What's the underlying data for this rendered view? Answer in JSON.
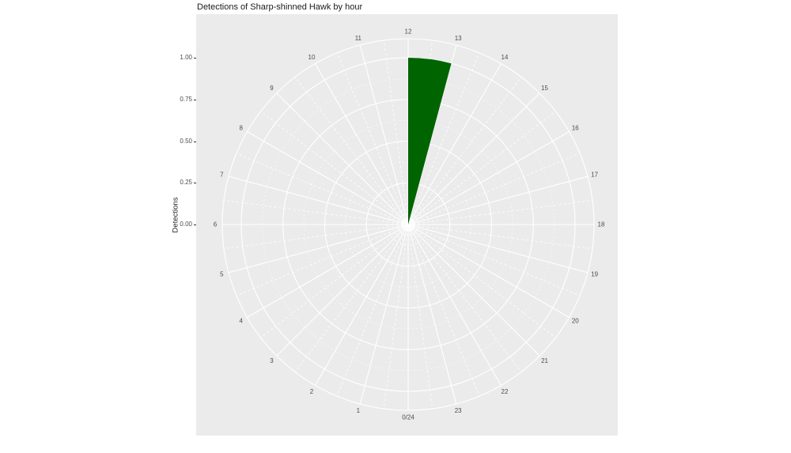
{
  "title": "Detections of Sharp-shinned Hawk by hour",
  "axis": {
    "y_title": "Detections"
  },
  "chart_data": {
    "type": "bar",
    "coord": "polar",
    "title": "Detections of Sharp-shinned Hawk by hour",
    "ylabel": "Detections",
    "ylim": [
      0,
      1
    ],
    "grid": true,
    "legend": "none",
    "categories": [
      "0/24",
      "1",
      "2",
      "3",
      "4",
      "5",
      "6",
      "7",
      "8",
      "9",
      "10",
      "11",
      "12",
      "13",
      "14",
      "15",
      "16",
      "17",
      "18",
      "19",
      "20",
      "21",
      "22",
      "23"
    ],
    "values": [
      0,
      0,
      0,
      0,
      0,
      0,
      0,
      0,
      0,
      0,
      0,
      0,
      1,
      0,
      0,
      0,
      0,
      0,
      0,
      0,
      0,
      0,
      0,
      0
    ],
    "r_ticks": [
      {
        "label": "0.00",
        "value": 0
      },
      {
        "label": "0.25",
        "value": 0.25
      },
      {
        "label": "0.50",
        "value": 0.5
      },
      {
        "label": "0.75",
        "value": 0.75
      },
      {
        "label": "1.00",
        "value": 1
      }
    ],
    "colors": {
      "bar": "#006400",
      "panel_bg": "#EBEBEB",
      "grid": "#FFFFFF",
      "axis_text": "#4D4D4D",
      "title_text": "#1A1A1A",
      "tick_mark": "#333333"
    }
  }
}
